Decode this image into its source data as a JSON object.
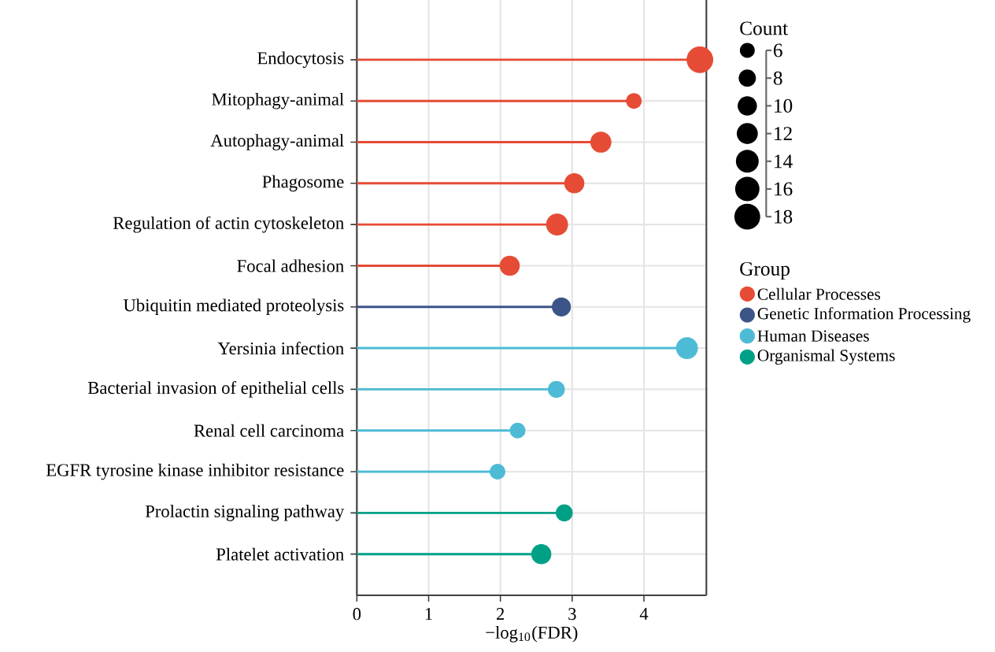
{
  "chart_data": {
    "type": "lollipop",
    "orientation": "horizontal",
    "marker": "circle",
    "grid": true,
    "legend": "right",
    "categories": [
      "Endocytosis",
      "Mitophagy-animal",
      "Autophagy-animal",
      "Phagosome",
      "Regulation of actin cytoskeleton",
      "Focal adhesion",
      "Ubiquitin mediated proteolysis",
      "Yersinia infection",
      "Bacterial invasion of epithelial cells",
      "Renal cell carcinoma",
      "EGFR tyrosine kinase inhibitor resistance",
      "Prolactin signaling pathway",
      "Platelet activation"
    ],
    "series": [
      {
        "name": "Cellular Processes",
        "color": "#e64b35",
        "values": [
          4.78,
          3.86,
          3.4,
          3.03,
          2.79,
          2.13,
          null,
          null,
          null,
          null,
          null,
          null,
          null
        ],
        "sizes": [
          18,
          6,
          11,
          10,
          12,
          10,
          null,
          null,
          null,
          null,
          null,
          null,
          null
        ]
      },
      {
        "name": "Genetic Information Processing",
        "color": "#3c5488",
        "values": [
          null,
          null,
          null,
          null,
          null,
          null,
          2.85,
          null,
          null,
          null,
          null,
          null,
          null
        ],
        "sizes": [
          null,
          null,
          null,
          null,
          null,
          null,
          9,
          null,
          null,
          null,
          null,
          null,
          null
        ]
      },
      {
        "name": "Human Diseases",
        "color": "#4dbbd5",
        "values": [
          null,
          null,
          null,
          null,
          null,
          null,
          null,
          4.6,
          2.78,
          2.24,
          1.96,
          null,
          null
        ],
        "sizes": [
          null,
          null,
          null,
          null,
          null,
          null,
          null,
          12,
          7,
          6,
          6,
          null,
          null
        ]
      },
      {
        "name": "Organismal Systems",
        "color": "#00a087",
        "values": [
          null,
          null,
          null,
          null,
          null,
          null,
          null,
          null,
          null,
          null,
          null,
          2.89,
          2.57
        ],
        "sizes": [
          null,
          null,
          null,
          null,
          null,
          null,
          null,
          null,
          null,
          null,
          null,
          7,
          10
        ]
      }
    ],
    "xlim": [
      0,
      4.87
    ],
    "xticks": [
      0,
      1,
      2,
      3,
      4
    ],
    "xlabel": "−log$_{10}$(FDR)",
    "size_legend": [
      6,
      8,
      10,
      12,
      14,
      16,
      18
    ],
    "legend_title": "Group",
    "annotations": [
      "Count"
    ]
  }
}
